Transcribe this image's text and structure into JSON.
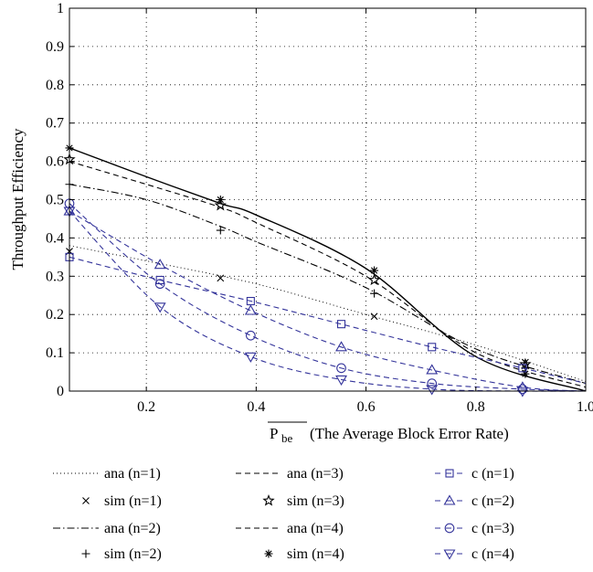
{
  "chart_data": {
    "type": "line",
    "xlabel": "(The Average Block Error Rate)",
    "xlabel_symbol": "P",
    "xlabel_sub": "be",
    "ylabel": "Throughput Efficiency",
    "xlim": [
      0.06,
      1.0
    ],
    "ylim": [
      0,
      1
    ],
    "xticks": [
      0.2,
      0.4,
      0.6,
      0.8,
      1.0
    ],
    "xtick_labels": [
      "0.2",
      "0.4",
      "0.6",
      "0.8",
      "1.0"
    ],
    "yticks": [
      0,
      0.1,
      0.2,
      0.3,
      0.4,
      0.5,
      0.6,
      0.7,
      0.8,
      0.9,
      1
    ],
    "ytick_labels": [
      "0",
      "0.1",
      "0.2",
      "0.3",
      "0.4",
      "0.5",
      "0.6",
      "0.7",
      "0.8",
      "0.9",
      "1"
    ],
    "grid": true,
    "legend_position": "bottom",
    "colors": {
      "black": "#000000",
      "blue": "#33339a"
    },
    "series": [
      {
        "name": "ana (n=1)",
        "kind": "line",
        "dash": "dotted",
        "color": "#000000",
        "x": [
          0.06,
          0.2,
          0.4,
          0.6,
          0.8,
          1.0
        ],
        "y": [
          0.38,
          0.34,
          0.28,
          0.2,
          0.12,
          0.025
        ]
      },
      {
        "name": "sim (n=1)",
        "kind": "marker",
        "marker": "x",
        "color": "#000000",
        "x": [
          0.06,
          0.335,
          0.615,
          0.89
        ],
        "y": [
          0.365,
          0.295,
          0.195,
          0.075
        ]
      },
      {
        "name": "ana (n=2)",
        "kind": "line",
        "dash": "dashdot",
        "color": "#000000",
        "x": [
          0.06,
          0.2,
          0.335,
          0.4,
          0.6,
          0.8,
          1.0
        ],
        "y": [
          0.54,
          0.5,
          0.43,
          0.39,
          0.27,
          0.11,
          0.02
        ]
      },
      {
        "name": "sim (n=2)",
        "kind": "marker",
        "marker": "+",
        "color": "#000000",
        "x": [
          0.06,
          0.335,
          0.615,
          0.89
        ],
        "y": [
          0.54,
          0.42,
          0.255,
          0.06
        ]
      },
      {
        "name": "ana (n=3)",
        "kind": "line",
        "dash": "dashed",
        "color": "#000000",
        "x": [
          0.06,
          0.2,
          0.335,
          0.4,
          0.6,
          0.8,
          1.0
        ],
        "y": [
          0.6,
          0.54,
          0.48,
          0.44,
          0.3,
          0.1,
          0.01
        ]
      },
      {
        "name": "sim (n=3)",
        "kind": "marker",
        "marker": "star",
        "color": "#000000",
        "x": [
          0.06,
          0.335,
          0.615,
          0.89
        ],
        "y": [
          0.605,
          0.485,
          0.29,
          0.07
        ]
      },
      {
        "name": "ana (n=4)",
        "kind": "line",
        "dash": "dashed",
        "color": "#000000",
        "x": [
          0.06,
          0.2,
          0.335,
          0.4,
          0.6,
          0.8,
          1.0
        ],
        "y": [
          0.635,
          0.56,
          0.49,
          0.46,
          0.32,
          0.09,
          0.0
        ]
      },
      {
        "name": "sim (n=4)",
        "kind": "marker",
        "marker": "asterisk",
        "color": "#000000",
        "x": [
          0.06,
          0.335,
          0.615,
          0.89
        ],
        "y": [
          0.635,
          0.5,
          0.315,
          0.045
        ]
      },
      {
        "name": "c (n=1)",
        "kind": "line-marker",
        "dash": "dashed",
        "marker": "square",
        "color": "#33339a",
        "x": [
          0.06,
          0.225,
          0.39,
          0.555,
          0.72,
          0.885,
          1.0
        ],
        "y": [
          0.35,
          0.29,
          0.235,
          0.175,
          0.115,
          0.06,
          0.02
        ]
      },
      {
        "name": "c (n=2)",
        "kind": "line-marker",
        "dash": "dashed",
        "marker": "triangle-up",
        "color": "#33339a",
        "x": [
          0.06,
          0.225,
          0.39,
          0.555,
          0.72,
          0.885,
          1.0
        ],
        "y": [
          0.47,
          0.33,
          0.21,
          0.115,
          0.055,
          0.01,
          0.0
        ]
      },
      {
        "name": "c (n=3)",
        "kind": "line-marker",
        "dash": "dashed",
        "marker": "circle",
        "color": "#33339a",
        "x": [
          0.06,
          0.225,
          0.39,
          0.555,
          0.72,
          0.885,
          1.0
        ],
        "y": [
          0.49,
          0.28,
          0.145,
          0.06,
          0.02,
          0.005,
          0.0
        ]
      },
      {
        "name": "c (n=4)",
        "kind": "line-marker",
        "dash": "dashed",
        "marker": "triangle-down",
        "color": "#33339a",
        "x": [
          0.06,
          0.225,
          0.39,
          0.555,
          0.72,
          0.885,
          1.0
        ],
        "y": [
          0.47,
          0.22,
          0.09,
          0.03,
          0.005,
          0.0,
          0.0
        ]
      }
    ]
  }
}
